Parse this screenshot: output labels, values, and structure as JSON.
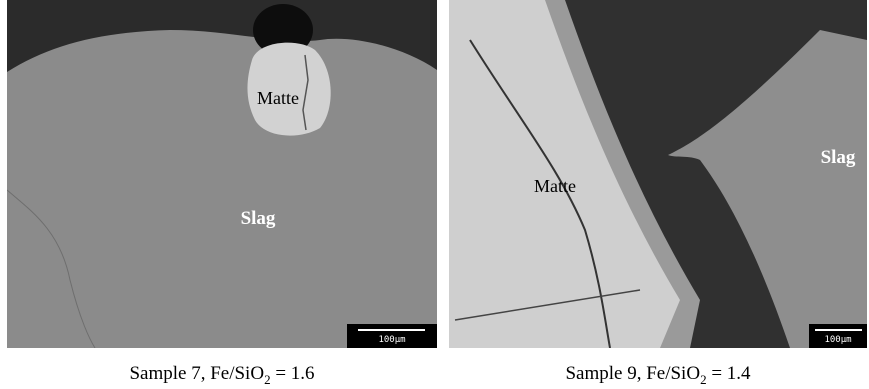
{
  "panels": [
    {
      "labels": {
        "matte": "Matte",
        "slag": "Slag"
      },
      "scale_bar": "100μm",
      "caption": {
        "prefix": "Sample 7, Fe/SiO",
        "subscript": "2",
        "suffix": " = 1.6"
      }
    },
    {
      "labels": {
        "matte": "Matte",
        "slag": "Slag"
      },
      "scale_bar": "100μm",
      "caption": {
        "prefix": "Sample 9, Fe/SiO",
        "subscript": "2",
        "suffix": " = 1.4"
      }
    }
  ]
}
